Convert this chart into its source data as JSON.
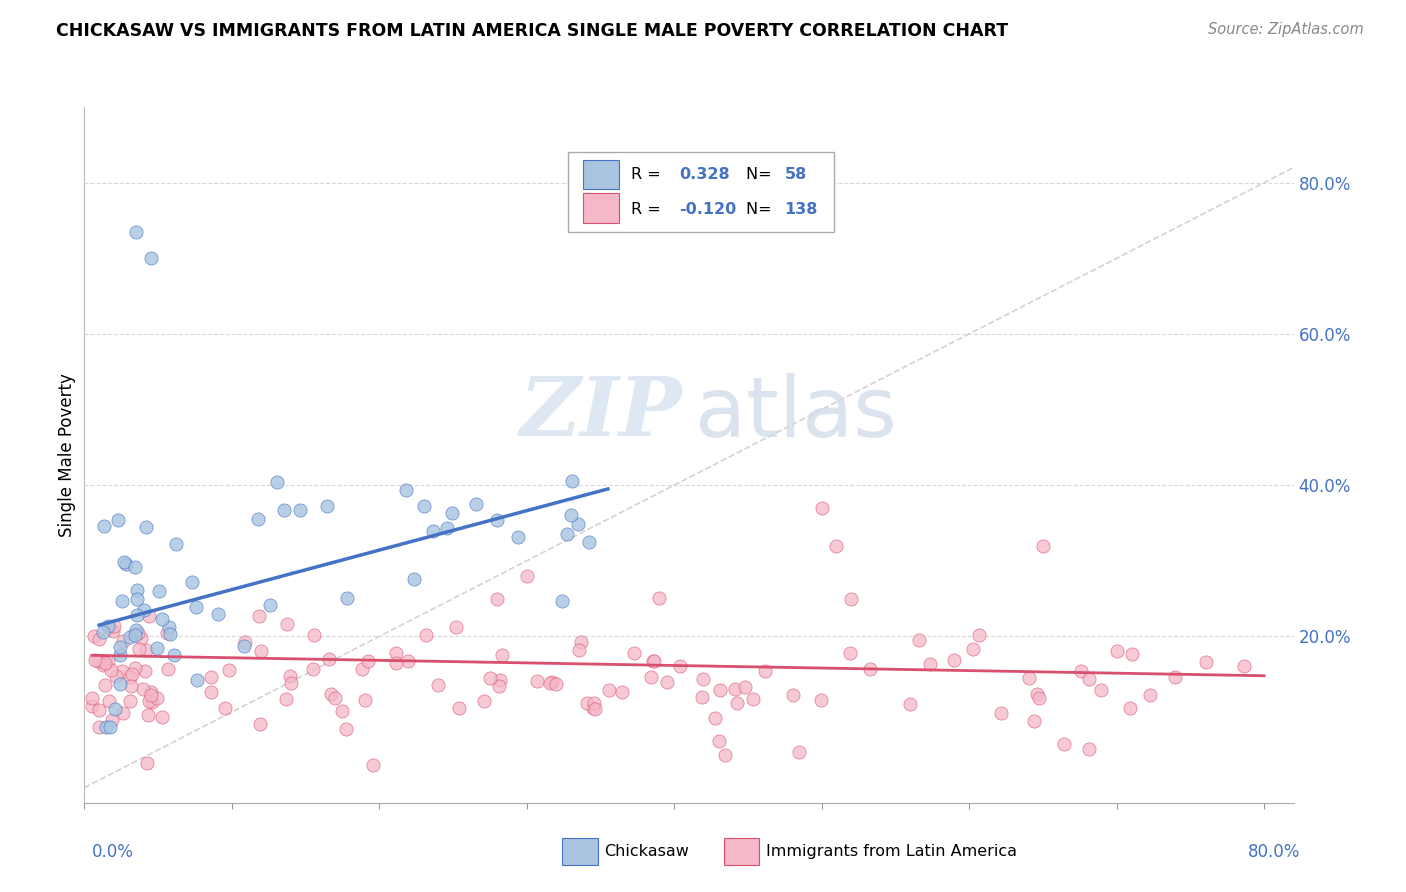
{
  "title": "CHICKASAW VS IMMIGRANTS FROM LATIN AMERICA SINGLE MALE POVERTY CORRELATION CHART",
  "source": "Source: ZipAtlas.com",
  "ylabel": "Single Male Poverty",
  "legend_label1": "Chickasaw",
  "legend_label2": "Immigrants from Latin America",
  "r1": "0.328",
  "n1": "58",
  "r2": "-0.120",
  "n2": "138",
  "xlim": [
    0.0,
    0.82
  ],
  "ylim": [
    -0.02,
    0.9
  ],
  "ytick_labels": [
    "20.0%",
    "40.0%",
    "60.0%",
    "80.0%"
  ],
  "ytick_values": [
    0.2,
    0.4,
    0.6,
    0.8
  ],
  "color_blue": "#a8c4e0",
  "color_pink": "#f4b8c8",
  "line_blue": "#4472c4",
  "line_pink": "#d94f6e",
  "line_diag_color": "#c8c8c8",
  "background": "#ffffff",
  "watermark_zip": "ZIP",
  "watermark_atlas": "atlas",
  "seed1": 42,
  "seed2": 99,
  "n_chickasaw": 58,
  "n_latin": 138
}
